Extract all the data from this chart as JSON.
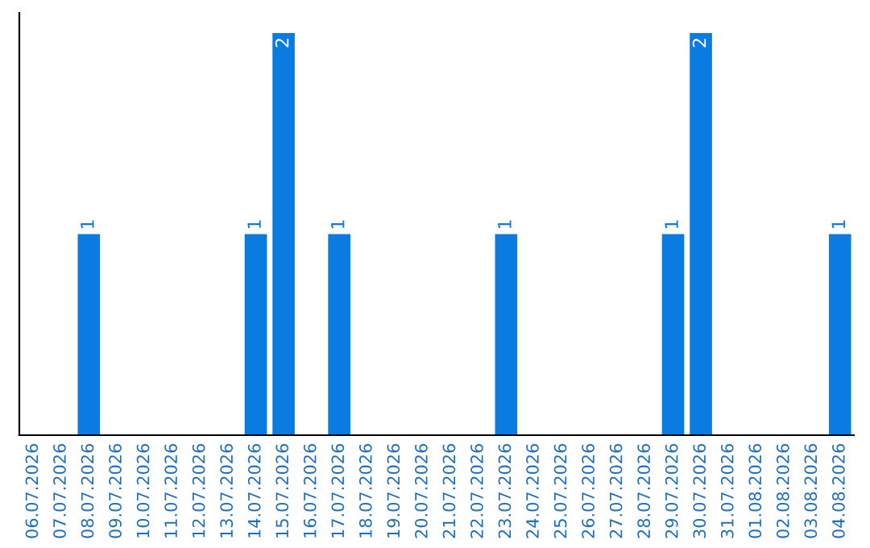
{
  "chart_data": {
    "type": "bar",
    "categories": [
      "06.07.2026",
      "07.07.2026",
      "08.07.2026",
      "09.07.2026",
      "10.07.2026",
      "11.07.2026",
      "12.07.2026",
      "13.07.2026",
      "14.07.2026",
      "15.07.2026",
      "16.07.2026",
      "17.07.2026",
      "18.07.2026",
      "19.07.2026",
      "20.07.2026",
      "21.07.2026",
      "22.07.2026",
      "23.07.2026",
      "24.07.2026",
      "25.07.2026",
      "26.07.2026",
      "27.07.2026",
      "28.07.2026",
      "29.07.2026",
      "30.07.2026",
      "31.07.2026",
      "01.08.2026",
      "02.08.2026",
      "03.08.2026",
      "04.08.2026"
    ],
    "values": [
      0,
      0,
      1,
      0,
      0,
      0,
      0,
      0,
      1,
      2,
      0,
      1,
      0,
      0,
      0,
      0,
      0,
      1,
      0,
      0,
      0,
      0,
      0,
      1,
      2,
      0,
      0,
      0,
      0,
      1
    ],
    "value_labels": [
      null,
      null,
      "1",
      null,
      null,
      null,
      null,
      null,
      "1",
      "2",
      null,
      "1",
      null,
      null,
      null,
      null,
      null,
      "1",
      null,
      null,
      null,
      null,
      null,
      "1",
      "2",
      null,
      null,
      null,
      null,
      "1"
    ],
    "color": "#0a7be0",
    "grid": false,
    "tick_labels": "x"
  }
}
